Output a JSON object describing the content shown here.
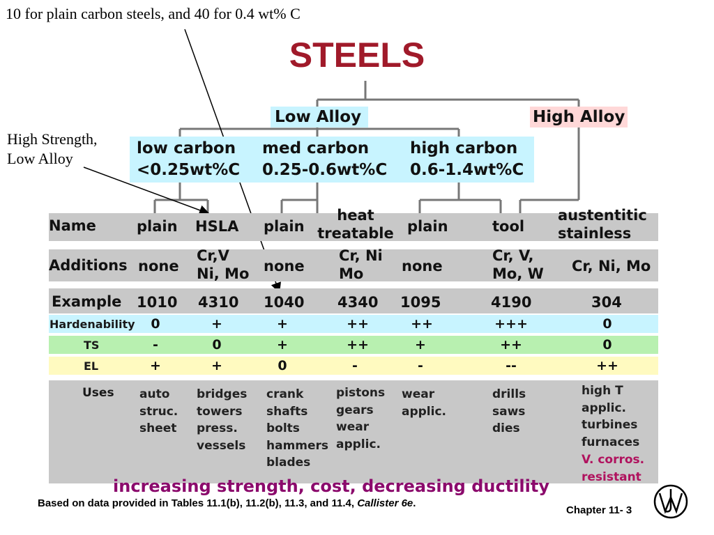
{
  "top_note": "10 for plain carbon steels, and 40 for 0.4 wt% C",
  "hsla_note": {
    "line1": "High Strength,",
    "line2": "Low Alloy"
  },
  "title": "STEELS",
  "groups": {
    "low_alloy": "Low Alloy",
    "high_alloy": "High Alloy"
  },
  "carbon": [
    {
      "name": "low carbon",
      "range": "<0.25wt%C"
    },
    {
      "name": "med carbon",
      "range": "0.25-0.6wt%C"
    },
    {
      "name": "high carbon",
      "range": "0.6-1.4wt%C"
    }
  ],
  "row_labels": {
    "name": "Name",
    "additions": "Additions",
    "example": "Example",
    "hardenability": "Hardenability",
    "ts": "TS",
    "el": "EL",
    "uses": "Uses"
  },
  "names": [
    {
      "line1": "plain",
      "line2": ""
    },
    {
      "line1": "HSLA",
      "line2": ""
    },
    {
      "line1": "plain",
      "line2": ""
    },
    {
      "line1": "heat",
      "line2": "treatable"
    },
    {
      "line1": "plain",
      "line2": ""
    },
    {
      "line1": "tool",
      "line2": ""
    },
    {
      "line1": "austentitic",
      "line2": "stainless"
    }
  ],
  "additions": [
    {
      "line1": "none",
      "line2": ""
    },
    {
      "line1": "Cr,V",
      "line2": "Ni, Mo"
    },
    {
      "line1": "none",
      "line2": ""
    },
    {
      "line1": "Cr, Ni",
      "line2": "Mo"
    },
    {
      "line1": "none",
      "line2": ""
    },
    {
      "line1": "Cr, V,",
      "line2": "Mo, W"
    },
    {
      "line1": "Cr, Ni, Mo",
      "line2": ""
    }
  ],
  "examples": [
    "1010",
    "4310",
    "1040",
    "4340",
    "1095",
    "4190",
    "304"
  ],
  "hardenability": [
    "0",
    "+",
    "+",
    "++",
    "++",
    "+++",
    "0"
  ],
  "ts": [
    "-",
    "0",
    "+",
    "++",
    "+",
    "++",
    "0"
  ],
  "el": [
    "+",
    "+",
    "0",
    "-",
    "-",
    "--",
    "++"
  ],
  "uses": [
    "auto\nstruc.\nsheet",
    "bridges\ntowers\npress.\nvessels",
    "crank\nshafts\nbolts\nhammers\nblades",
    "pistons\ngears\nwear\napplic.",
    "wear\napplic.",
    "drills\nsaws\ndies",
    "high T\napplic.\nturbines\nfurnaces"
  ],
  "uses_highlight": "V. corros.\nresistant",
  "trend": "increasing strength, cost, decreasing ductility",
  "footnote": {
    "prefix": "Based on data provided in Tables 11.1(b), 11.2(b), 11.3, and 11.4, ",
    "italic": "Callister 6e",
    "suffix": "."
  },
  "chapter": "Chapter 11- 3",
  "logo_letters": "JW",
  "colors": {
    "title": "#a01a2a",
    "trend": "#8b0a6c",
    "highlight_text": "#b0125e",
    "band_gray": "#c8c8c8",
    "low_alloy_bg": "#c8f4ff",
    "high_alloy_bg": "#ffd8d8"
  }
}
